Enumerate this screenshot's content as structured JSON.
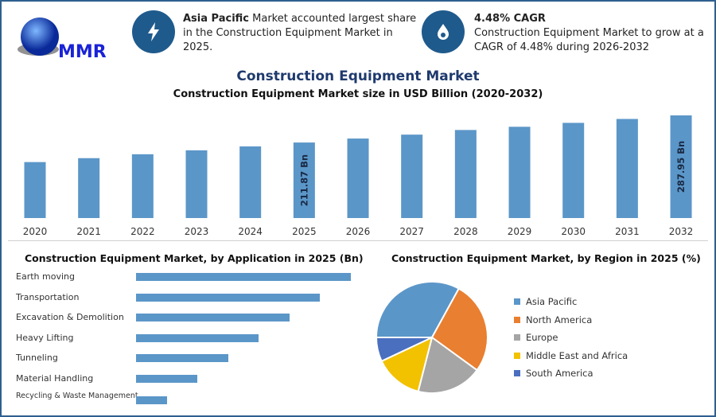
{
  "header": {
    "logo_text": "MMR",
    "info1": {
      "icon": "lightning-icon",
      "bold": "Asia Pacific",
      "text": " Market accounted largest share in the Construction Equipment Market in 2025."
    },
    "info2": {
      "icon": "flame-drop-icon",
      "bold": "4.48% CAGR",
      "text": "Construction Equipment Market to grow at a CAGR of 4.48% during 2026-2032"
    }
  },
  "title": "Construction Equipment Market",
  "chart_data": [
    {
      "type": "bar",
      "title": "Construction Equipment Market size in USD Billion (2020-2032)",
      "categories": [
        "2020",
        "2021",
        "2022",
        "2023",
        "2024",
        "2025",
        "2026",
        "2027",
        "2028",
        "2029",
        "2030",
        "2031",
        "2032"
      ],
      "values": [
        157,
        168,
        179,
        190,
        201,
        211.87,
        223,
        234,
        247,
        256,
        267,
        278,
        287.95
      ],
      "data_labels": {
        "2025": "211.87 Bn",
        "2032": "287.95 Bn"
      },
      "color": "#5b96c8",
      "ylim": [
        0,
        300
      ],
      "grid": false
    },
    {
      "type": "bar",
      "orientation": "horizontal",
      "title": "Construction Equipment Market, by Application in 2025 (Bn)",
      "categories": [
        "Earth moving",
        "Transportation",
        "Excavation & Demolition",
        "Heavy Lifting",
        "Tunneling",
        "Material Handling",
        "Recycling & Waste Management"
      ],
      "values": [
        7,
        6,
        5,
        4,
        3,
        2,
        1
      ],
      "color": "#5b96c8"
    },
    {
      "type": "pie",
      "title": "Construction Equipment Market, by Region in 2025 (%)",
      "categories": [
        "Asia Pacific",
        "North America",
        "Europe",
        "Middle East and Africa",
        "South America"
      ],
      "values": [
        33,
        27,
        19,
        14,
        7
      ],
      "colors": [
        "#5b96c8",
        "#e97f30",
        "#a5a5a5",
        "#f2c100",
        "#4a6fbf"
      ],
      "legend": "right"
    }
  ]
}
